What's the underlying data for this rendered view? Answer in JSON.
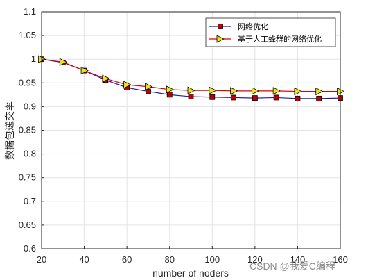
{
  "chart_data": {
    "type": "line",
    "xlabel": "number of noders",
    "ylabel": "数据包递交率",
    "xlim": [
      20,
      160
    ],
    "ylim": [
      0.6,
      1.1
    ],
    "x_ticks": [
      20,
      40,
      60,
      80,
      100,
      120,
      140,
      160
    ],
    "y_ticks": [
      0.6,
      0.65,
      0.7,
      0.75,
      0.8,
      0.85,
      0.9,
      0.95,
      1,
      1.05,
      1.1
    ],
    "grid": true,
    "legend_position": "top-right",
    "x": [
      20,
      30,
      40,
      50,
      60,
      70,
      80,
      90,
      100,
      110,
      120,
      130,
      140,
      150,
      160
    ],
    "series": [
      {
        "name": "网络优化",
        "color": "#1f1fa3",
        "marker": "square",
        "marker_color": "#c00000",
        "values": [
          1.0,
          0.993,
          0.976,
          0.956,
          0.94,
          0.932,
          0.925,
          0.921,
          0.92,
          0.919,
          0.918,
          0.919,
          0.917,
          0.917,
          0.918
        ]
      },
      {
        "name": "基于人工蜂群的网络优化",
        "color": "#e00000",
        "marker": "triangle-right",
        "marker_color": "#e5e51a",
        "values": [
          1.0,
          0.994,
          0.976,
          0.959,
          0.946,
          0.942,
          0.936,
          0.934,
          0.934,
          0.933,
          0.933,
          0.933,
          0.932,
          0.932,
          0.932
        ]
      }
    ]
  },
  "watermark": "CSDN @我爱C编程"
}
